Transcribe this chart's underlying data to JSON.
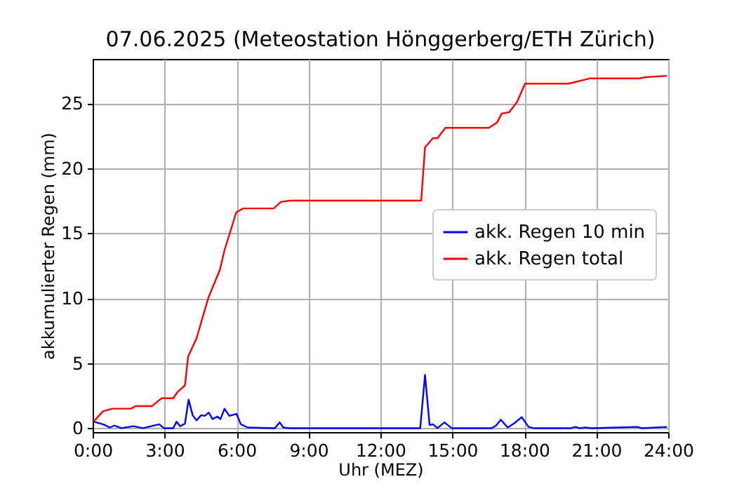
{
  "chart_data": {
    "type": "line",
    "title": "07.06.2025  (Meteostation Hönggerberg/ETH Zürich)",
    "xlabel": "Uhr (MEZ)",
    "ylabel": "akkumulierter Regen (mm)",
    "xlim": [
      0,
      24
    ],
    "xticks": [
      {
        "value": 0,
        "label": "0:00"
      },
      {
        "value": 3,
        "label": "3:00"
      },
      {
        "value": 6,
        "label": "6:00"
      },
      {
        "value": 9,
        "label": "9:00"
      },
      {
        "value": 12,
        "label": "12:00"
      },
      {
        "value": 15,
        "label": "15:00"
      },
      {
        "value": 18,
        "label": "18:00"
      },
      {
        "value": 21,
        "label": "21:00"
      },
      {
        "value": 24,
        "label": "24:00"
      }
    ],
    "ylim": [
      -0.3,
      28.4
    ],
    "yticks": [
      0,
      5,
      10,
      15,
      20,
      25
    ],
    "grid": true,
    "legend": "center right",
    "line_style": "solid",
    "series": [
      {
        "name": "akk. Regen 10 min",
        "color": "#0000ff",
        "x": [
          0.04,
          0.43,
          0.72,
          0.9,
          1.2,
          1.7,
          2.1,
          2.78,
          2.97,
          3.36,
          3.5,
          3.65,
          3.85,
          4.0,
          4.17,
          4.33,
          4.53,
          4.68,
          4.84,
          5.0,
          5.2,
          5.33,
          5.5,
          5.7,
          6.0,
          6.18,
          6.47,
          7.6,
          7.8,
          7.95,
          8.2,
          13.66,
          13.86,
          14.05,
          14.19,
          14.38,
          14.67,
          14.97,
          16.63,
          16.82,
          17.02,
          17.31,
          17.6,
          17.89,
          18.18,
          18.38,
          19.94,
          20.13,
          20.3,
          20.55,
          20.8,
          22.7,
          22.9,
          23.95
        ],
        "values": [
          0.5,
          0.3,
          0.05,
          0.2,
          0,
          0.15,
          0,
          0.3,
          0,
          0,
          0.5,
          0.15,
          0.35,
          2.2,
          1.0,
          0.6,
          1.0,
          0.95,
          1.2,
          0.7,
          0.9,
          0.7,
          1.5,
          0.95,
          1.1,
          0.3,
          0.05,
          0,
          0.45,
          0.05,
          0,
          0,
          4.1,
          0.25,
          0.3,
          0,
          0.45,
          0,
          0,
          0.2,
          0.65,
          0.05,
          0.4,
          0.85,
          0.1,
          0,
          0,
          0.1,
          0,
          0.05,
          0,
          0.1,
          0,
          0.1
        ]
      },
      {
        "name": "akk. Regen total",
        "color": "#ff0000",
        "x": [
          0.04,
          0.43,
          0.82,
          1.6,
          1.8,
          2.48,
          2.87,
          3.36,
          3.55,
          3.85,
          3.98,
          4.33,
          4.82,
          5.31,
          5.5,
          5.99,
          6.28,
          7.55,
          7.85,
          8.24,
          13.7,
          13.86,
          14.19,
          14.38,
          14.71,
          16.53,
          16.86,
          17.06,
          17.37,
          17.7,
          18.03,
          19.85,
          20.73,
          22.78,
          23.07,
          23.95
        ],
        "values": [
          0.5,
          1.3,
          1.5,
          1.5,
          1.7,
          1.7,
          2.3,
          2.3,
          2.8,
          3.3,
          5.5,
          6.9,
          10.0,
          12.2,
          13.7,
          16.6,
          16.9,
          16.9,
          17.4,
          17.5,
          17.5,
          21.6,
          22.3,
          22.3,
          23.1,
          23.1,
          23.5,
          24.2,
          24.3,
          25.1,
          26.5,
          26.5,
          26.9,
          26.9,
          27.0,
          27.1
        ]
      }
    ]
  }
}
